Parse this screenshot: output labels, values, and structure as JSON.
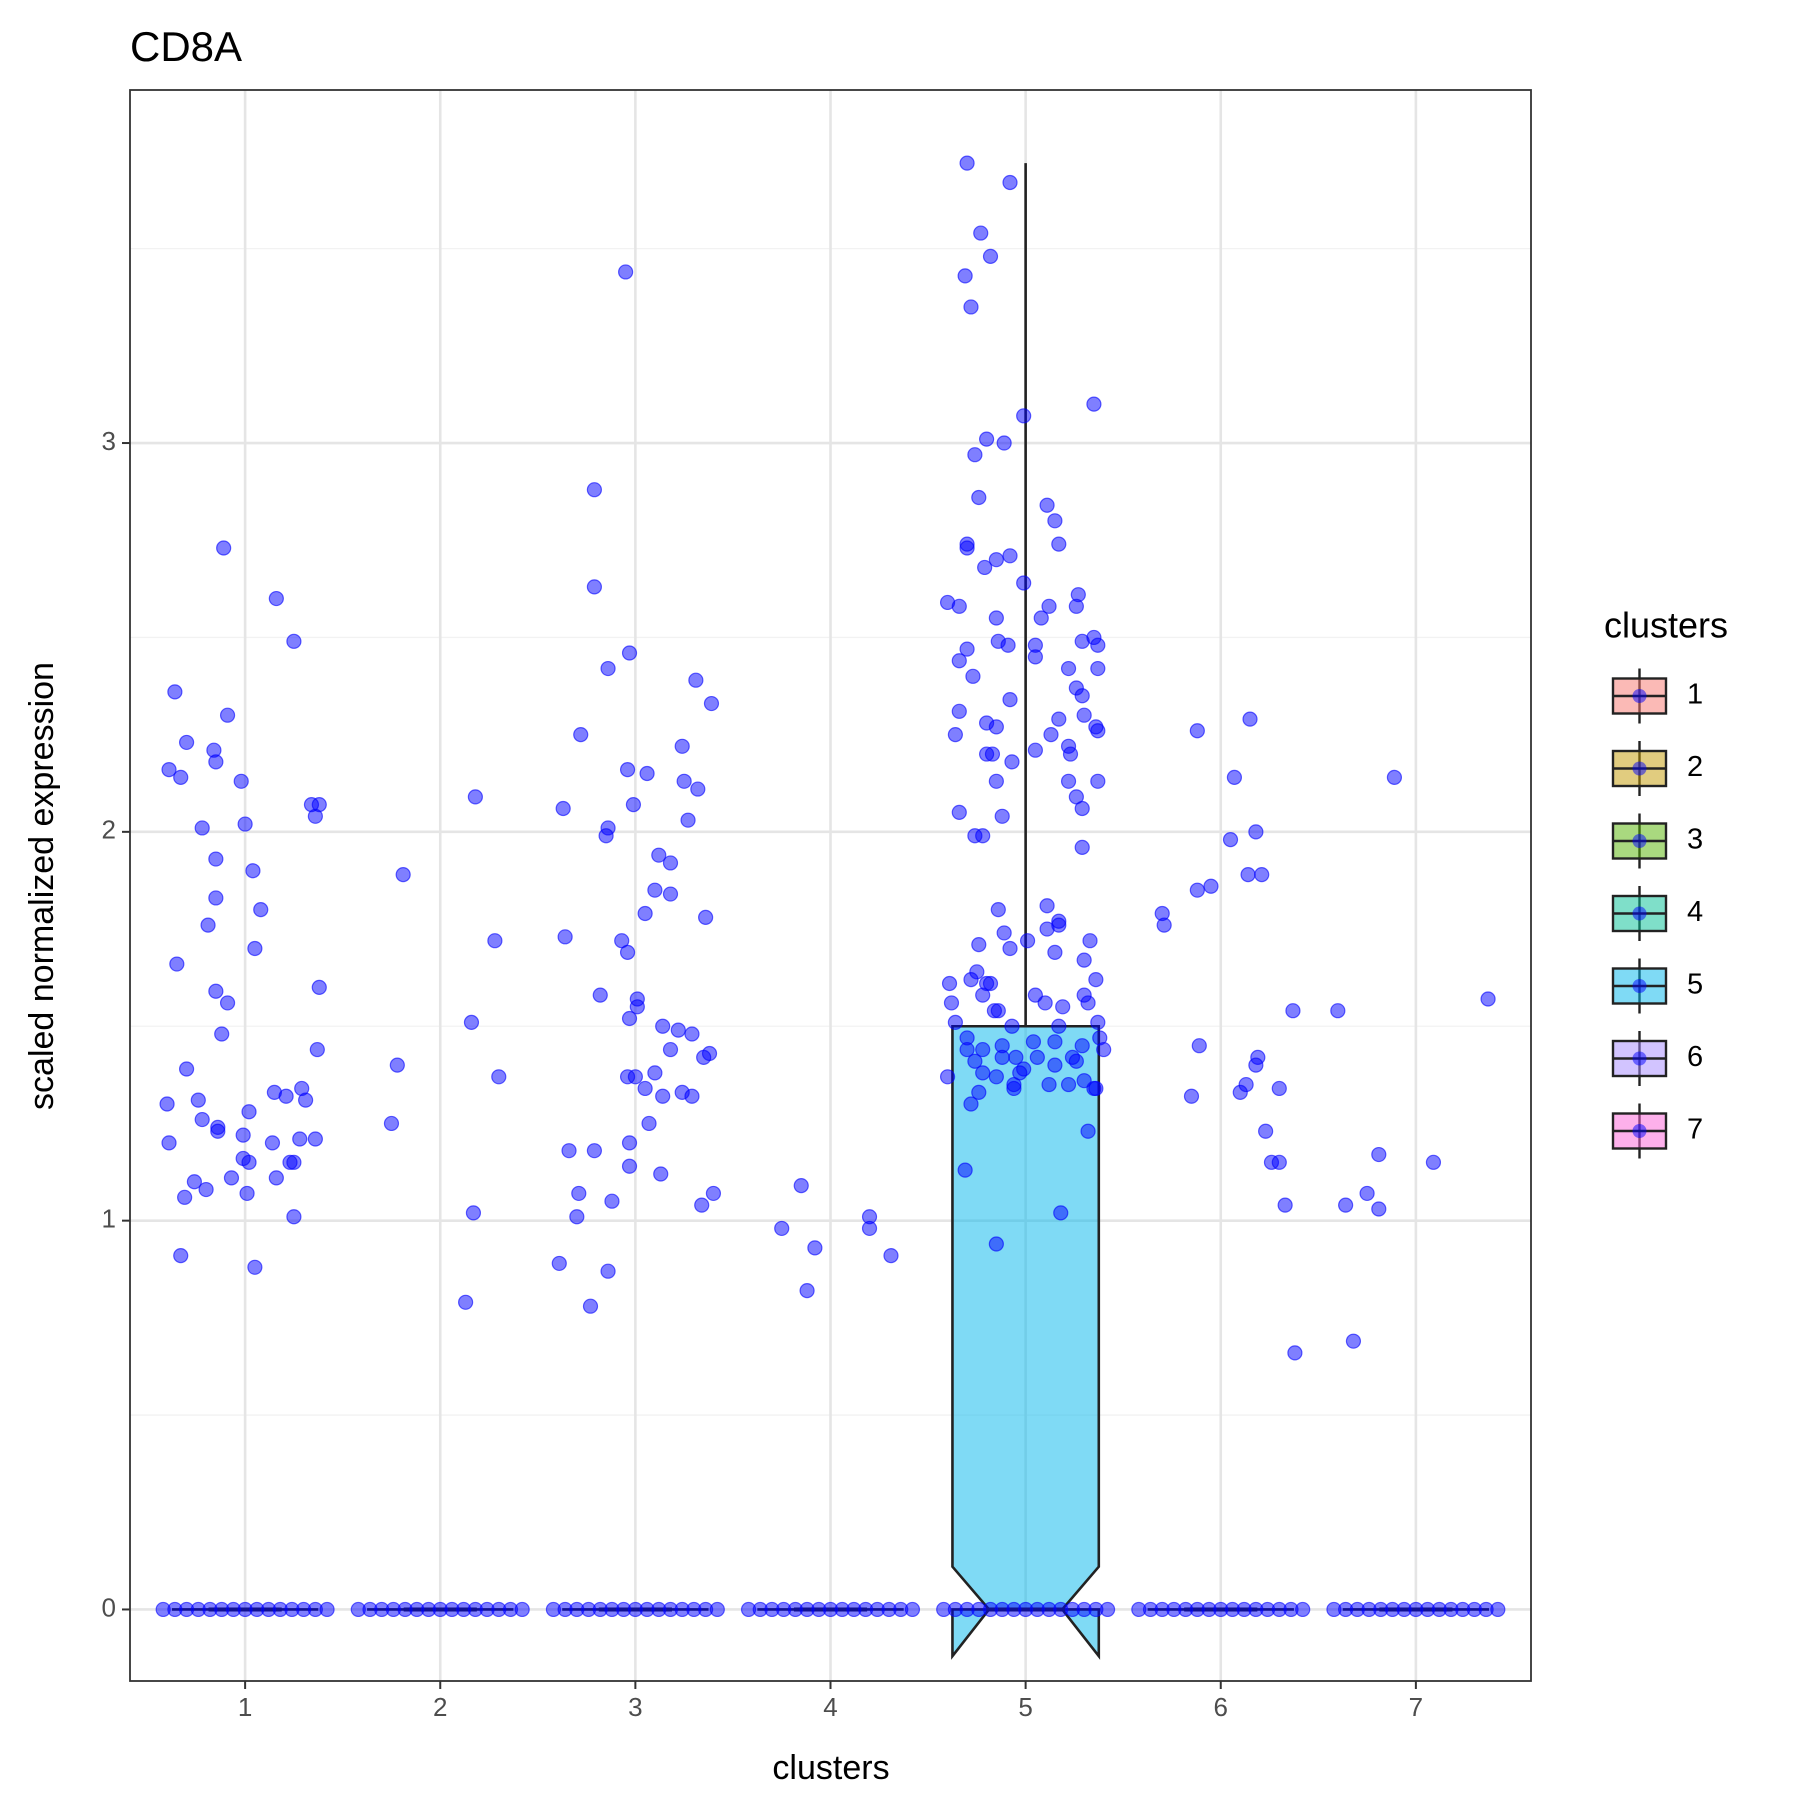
{
  "chart_data": {
    "type": "box",
    "title": "CD8A",
    "x_label": "clusters",
    "y_label": "scaled normalized expression",
    "legend_title": "clusters",
    "legend_position": "right",
    "grid": true,
    "point_color": "#0000ff",
    "xlim": [
      0.41,
      7.59
    ],
    "xticks": [
      1,
      2,
      3,
      4,
      5,
      6,
      7
    ],
    "ylim": [
      -0.184,
      3.908
    ],
    "yticks": [
      0,
      1,
      2,
      3
    ],
    "yminorticks": [
      0.5,
      1.5,
      2.5,
      3.5
    ],
    "series": [
      {
        "name": "1",
        "color": "#f8766d",
        "box": {
          "whisker_low": 0,
          "q1": 0,
          "median": 0,
          "q3": 0,
          "whisker_high": 0,
          "notch_low": 0,
          "notch_high": 0
        },
        "points": {
          "x": [
            0.64,
            0.61,
            0.67,
            0.7,
            0.84,
            0.85,
            0.89,
            0.91,
            0.98,
            1.16,
            1.25,
            1.34,
            1.38,
            1.36,
            0.78,
            0.85,
            1.0,
            1.04,
            0.85,
            1.08,
            0.81,
            1.05,
            0.65,
            0.85,
            0.91,
            1.38,
            0.88,
            1.37,
            0.7,
            0.76,
            0.6,
            1.15,
            1.21,
            1.29,
            1.31,
            0.78,
            1.02,
            0.86,
            0.86,
            0.61,
            0.99,
            1.14,
            1.28,
            1.36,
            0.99,
            1.02,
            1.23,
            1.25,
            1.16,
            0.74,
            0.93,
            0.8,
            0.69,
            1.01,
            1.25,
            0.67,
            1.05,
            0.58,
            0.64,
            0.7,
            0.76,
            0.82,
            0.88,
            0.94,
            1,
            1.06,
            1.12,
            1.18,
            1.24,
            1.3,
            1.36,
            1.42
          ],
          "y": [
            2.36,
            2.16,
            2.14,
            2.23,
            2.21,
            2.18,
            2.73,
            2.3,
            2.13,
            2.6,
            2.49,
            2.07,
            2.07,
            2.04,
            2.01,
            1.93,
            2.02,
            1.9,
            1.83,
            1.8,
            1.76,
            1.7,
            1.66,
            1.59,
            1.56,
            1.6,
            1.48,
            1.44,
            1.39,
            1.31,
            1.3,
            1.33,
            1.32,
            1.34,
            1.31,
            1.26,
            1.28,
            1.24,
            1.23,
            1.2,
            1.22,
            1.2,
            1.21,
            1.21,
            1.16,
            1.15,
            1.15,
            1.15,
            1.11,
            1.1,
            1.11,
            1.08,
            1.06,
            1.07,
            1.01,
            0.91,
            0.88,
            0,
            0,
            0,
            0,
            0,
            0,
            0,
            0,
            0,
            0,
            0,
            0,
            0,
            0,
            0
          ]
        }
      },
      {
        "name": "2",
        "color": "#c49a00",
        "box": {
          "whisker_low": 0,
          "q1": 0,
          "median": 0,
          "q3": 0,
          "whisker_high": 0,
          "notch_low": 0,
          "notch_high": 0
        },
        "points": {
          "x": [
            1.81,
            2.18,
            2.28,
            2.16,
            1.78,
            2.3,
            1.75,
            2.17,
            2.13,
            1.58,
            1.64,
            1.7,
            1.76,
            1.82,
            1.88,
            1.94,
            2,
            2.06,
            2.12,
            2.18,
            2.24,
            2.3,
            2.36,
            2.42
          ],
          "y": [
            1.89,
            2.09,
            1.72,
            1.51,
            1.4,
            1.37,
            1.25,
            1.02,
            0.79,
            0,
            0,
            0,
            0,
            0,
            0,
            0,
            0,
            0,
            0,
            0,
            0,
            0,
            0,
            0
          ]
        }
      },
      {
        "name": "3",
        "color": "#53b400",
        "box": {
          "whisker_low": 0,
          "q1": 0,
          "median": 0,
          "q3": 0,
          "whisker_high": 0,
          "notch_low": 0,
          "notch_high": 0
        },
        "points": {
          "x": [
            2.95,
            2.79,
            2.79,
            2.97,
            2.86,
            3.31,
            3.39,
            2.72,
            3.24,
            2.96,
            3.06,
            3.25,
            3.32,
            2.99,
            2.63,
            3.27,
            2.86,
            2.85,
            3.12,
            3.18,
            3.1,
            3.18,
            3.05,
            3.36,
            2.64,
            2.93,
            2.96,
            2.82,
            3.01,
            3.01,
            2.97,
            3.14,
            3.22,
            3.29,
            3.18,
            3.38,
            3.35,
            3.1,
            2.96,
            3.0,
            3.05,
            3.24,
            3.14,
            3.29,
            3.07,
            2.97,
            2.66,
            2.79,
            2.97,
            3.13,
            2.71,
            3.4,
            2.88,
            3.34,
            2.7,
            2.61,
            2.86,
            2.77,
            2.58,
            2.64,
            2.7,
            2.76,
            2.82,
            2.88,
            2.94,
            3,
            3.06,
            3.12,
            3.18,
            3.24,
            3.3,
            3.36,
            3.42
          ],
          "y": [
            3.44,
            2.88,
            2.63,
            2.46,
            2.42,
            2.39,
            2.33,
            2.25,
            2.22,
            2.16,
            2.15,
            2.13,
            2.11,
            2.07,
            2.06,
            2.03,
            2.01,
            1.99,
            1.94,
            1.92,
            1.85,
            1.84,
            1.79,
            1.78,
            1.73,
            1.72,
            1.69,
            1.58,
            1.57,
            1.55,
            1.52,
            1.5,
            1.49,
            1.48,
            1.44,
            1.43,
            1.42,
            1.38,
            1.37,
            1.37,
            1.34,
            1.33,
            1.32,
            1.32,
            1.25,
            1.2,
            1.18,
            1.18,
            1.14,
            1.12,
            1.07,
            1.07,
            1.05,
            1.04,
            1.01,
            0.89,
            0.87,
            0.78,
            0,
            0,
            0,
            0,
            0,
            0,
            0,
            0,
            0,
            0,
            0,
            0,
            0,
            0,
            0
          ]
        }
      },
      {
        "name": "4",
        "color": "#00c094",
        "box": {
          "whisker_low": 0,
          "q1": 0,
          "median": 0,
          "q3": 0,
          "whisker_high": 0,
          "notch_low": 0,
          "notch_high": 0
        },
        "points": {
          "x": [
            3.85,
            4.2,
            4.2,
            3.75,
            3.92,
            4.31,
            3.88,
            3.58,
            3.64,
            3.7,
            3.76,
            3.82,
            3.88,
            3.94,
            4,
            4.06,
            4.12,
            4.18,
            4.24,
            4.3,
            4.36,
            4.42
          ],
          "y": [
            1.09,
            1.01,
            0.98,
            0.98,
            0.93,
            0.91,
            0.82,
            0,
            0,
            0,
            0,
            0,
            0,
            0,
            0,
            0,
            0,
            0,
            0,
            0,
            0,
            0
          ]
        }
      },
      {
        "name": "5",
        "color": "#00b6eb",
        "box": {
          "whisker_low": 0,
          "q1": 0,
          "median": 0,
          "q3": 1.5,
          "whisker_high": 3.72,
          "notch_low": -0.12,
          "notch_high": 0.11
        },
        "points": {
          "x": [
            4.7,
            4.92,
            4.77,
            4.82,
            4.69,
            4.72,
            4.99,
            5.35,
            4.8,
            4.89,
            4.74,
            4.76,
            5.11,
            5.15,
            4.7,
            4.7,
            5.17,
            4.92,
            4.85,
            4.79,
            4.99,
            5.27,
            4.6,
            5.12,
            5.26,
            4.66,
            5.08,
            4.85,
            4.86,
            4.91,
            5.05,
            5.29,
            5.35,
            5.37,
            4.7,
            4.66,
            5.05,
            4.73,
            5.22,
            5.37,
            5.26,
            4.92,
            5.29,
            4.66,
            5.3,
            4.8,
            4.85,
            5.17,
            5.36,
            5.37,
            4.64,
            5.13,
            5.22,
            4.8,
            4.83,
            5.05,
            5.23,
            4.93,
            4.85,
            5.22,
            5.37,
            5.26,
            5.29,
            4.66,
            4.88,
            4.74,
            4.78,
            5.29,
            4.86,
            5.11,
            5.17,
            5.17,
            4.89,
            5.11,
            5.33,
            5.01,
            4.76,
            4.92,
            5.15,
            5.3,
            4.75,
            4.61,
            4.72,
            4.8,
            4.82,
            5.36,
            5.05,
            5.3,
            4.78,
            4.62,
            4.84,
            5.1,
            5.19,
            5.32,
            4.86,
            4.64,
            4.93,
            5.37,
            5.17,
            4.7,
            4.88,
            5.04,
            5.15,
            5.38,
            4.7,
            4.78,
            5.29,
            5.4,
            4.88,
            4.95,
            5.06,
            5.24,
            4.74,
            5.26,
            5.15,
            4.99,
            4.78,
            4.97,
            4.6,
            4.85,
            5.3,
            4.94,
            5.12,
            5.22,
            5.35,
            5.36,
            4.94,
            4.76,
            4.72,
            5.32,
            4.69,
            5.18,
            4.85,
            4.58,
            4.64,
            4.7,
            4.76,
            4.82,
            4.88,
            4.94,
            5,
            5.06,
            5.12,
            5.18,
            5.24,
            5.3,
            5.36,
            5.42
          ],
          "y": [
            3.72,
            3.67,
            3.54,
            3.48,
            3.43,
            3.35,
            3.07,
            3.1,
            3.01,
            3.0,
            2.97,
            2.86,
            2.84,
            2.8,
            2.74,
            2.73,
            2.74,
            2.71,
            2.7,
            2.68,
            2.64,
            2.61,
            2.59,
            2.58,
            2.58,
            2.58,
            2.55,
            2.55,
            2.49,
            2.48,
            2.48,
            2.49,
            2.5,
            2.48,
            2.47,
            2.44,
            2.45,
            2.4,
            2.42,
            2.42,
            2.37,
            2.34,
            2.35,
            2.31,
            2.3,
            2.28,
            2.27,
            2.29,
            2.27,
            2.26,
            2.25,
            2.25,
            2.22,
            2.2,
            2.2,
            2.21,
            2.2,
            2.18,
            2.13,
            2.13,
            2.13,
            2.09,
            2.06,
            2.05,
            2.04,
            1.99,
            1.99,
            1.96,
            1.8,
            1.81,
            1.77,
            1.76,
            1.74,
            1.75,
            1.72,
            1.72,
            1.71,
            1.7,
            1.69,
            1.67,
            1.64,
            1.61,
            1.62,
            1.61,
            1.61,
            1.62,
            1.58,
            1.58,
            1.58,
            1.56,
            1.54,
            1.56,
            1.55,
            1.56,
            1.54,
            1.51,
            1.5,
            1.51,
            1.5,
            1.47,
            1.45,
            1.46,
            1.46,
            1.47,
            1.44,
            1.44,
            1.45,
            1.44,
            1.42,
            1.42,
            1.42,
            1.42,
            1.41,
            1.41,
            1.4,
            1.39,
            1.38,
            1.38,
            1.37,
            1.37,
            1.36,
            1.35,
            1.35,
            1.35,
            1.34,
            1.34,
            1.34,
            1.33,
            1.3,
            1.23,
            1.13,
            1.02,
            0.94,
            0,
            0,
            0,
            0,
            0,
            0,
            0,
            0,
            0,
            0,
            0,
            0,
            0,
            0,
            0
          ]
        }
      },
      {
        "name": "6",
        "color": "#a58aff",
        "box": {
          "whisker_low": 0,
          "q1": 0,
          "median": 0,
          "q3": 0,
          "whisker_high": 0,
          "notch_low": 0,
          "notch_high": 0
        },
        "points": {
          "x": [
            6.15,
            5.88,
            6.07,
            6.05,
            6.18,
            6.14,
            6.21,
            5.95,
            5.88,
            5.7,
            5.71,
            6.37,
            5.89,
            6.19,
            6.18,
            6.13,
            6.1,
            6.3,
            5.85,
            6.23,
            6.26,
            6.3,
            6.33,
            6.38,
            5.58,
            5.64,
            5.7,
            5.76,
            5.82,
            5.88,
            5.94,
            6,
            6.06,
            6.12,
            6.18,
            6.24,
            6.3,
            6.36,
            6.42
          ],
          "y": [
            2.29,
            2.26,
            2.14,
            1.98,
            2.0,
            1.89,
            1.89,
            1.86,
            1.85,
            1.79,
            1.76,
            1.54,
            1.45,
            1.42,
            1.4,
            1.35,
            1.33,
            1.34,
            1.32,
            1.23,
            1.15,
            1.15,
            1.04,
            0.66,
            0,
            0,
            0,
            0,
            0,
            0,
            0,
            0,
            0,
            0,
            0,
            0,
            0,
            0,
            0
          ]
        }
      },
      {
        "name": "7",
        "color": "#fb61d7",
        "box": {
          "whisker_low": 0,
          "q1": 0,
          "median": 0,
          "q3": 0,
          "whisker_high": 0,
          "notch_low": 0,
          "notch_high": 0
        },
        "points": {
          "x": [
            7.37,
            6.6,
            6.89,
            6.81,
            7.09,
            6.75,
            6.64,
            6.81,
            6.68,
            6.58,
            6.64,
            6.7,
            6.76,
            6.82,
            6.88,
            6.94,
            7,
            7.06,
            7.12,
            7.18,
            7.24,
            7.3,
            7.36,
            7.42
          ],
          "y": [
            1.57,
            1.54,
            2.14,
            1.17,
            1.15,
            1.07,
            1.04,
            1.03,
            0.69,
            0,
            0,
            0,
            0,
            0,
            0,
            0,
            0,
            0,
            0,
            0,
            0,
            0,
            0,
            0
          ]
        }
      }
    ]
  }
}
